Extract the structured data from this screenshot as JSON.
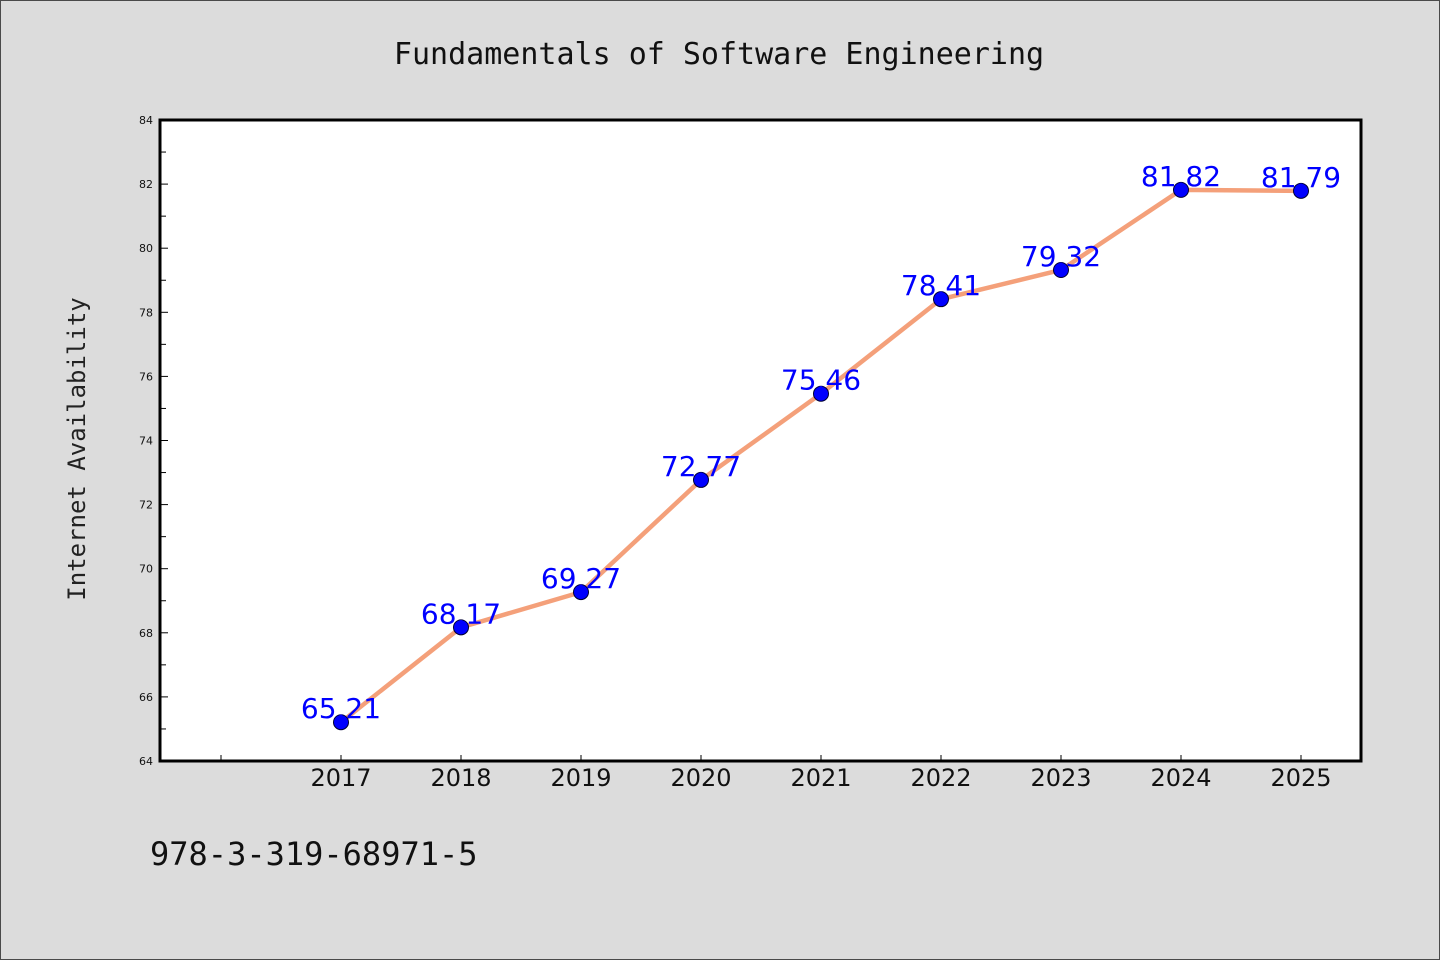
{
  "chart_data": {
    "type": "line",
    "title": "Fundamentals of Software Engineering",
    "xlabel": "",
    "ylabel": "Internet Availability",
    "categories": [
      "2017",
      "2018",
      "2019",
      "2020",
      "2021",
      "2022",
      "2023",
      "2024",
      "2025"
    ],
    "series": [
      {
        "values": [
          65.21,
          68.17,
          69.27,
          72.77,
          75.46,
          78.41,
          79.32,
          81.82,
          81.79
        ],
        "data_labels": [
          "65.21",
          "68.17",
          "69.27",
          "72.77",
          "75.46",
          "78.41",
          "79.32",
          "81.82",
          "81.79"
        ],
        "line_color": "#f4a07a",
        "marker_color": "#0000ff"
      }
    ],
    "ylim": [
      64,
      84
    ],
    "y_ticks": [
      "64",
      "66",
      "68",
      "70",
      "72",
      "74",
      "76",
      "78",
      "80",
      "82",
      "84"
    ],
    "grid": false,
    "legend": "none"
  },
  "footer": {
    "isbn": "978-3-319-68971-5"
  },
  "colors": {
    "background": "#dcdcdc",
    "plot_background": "#ffffff",
    "axis": "#000000",
    "line": "#f4a07a",
    "marker": "#0000ff",
    "data_label": "#0000ff"
  }
}
